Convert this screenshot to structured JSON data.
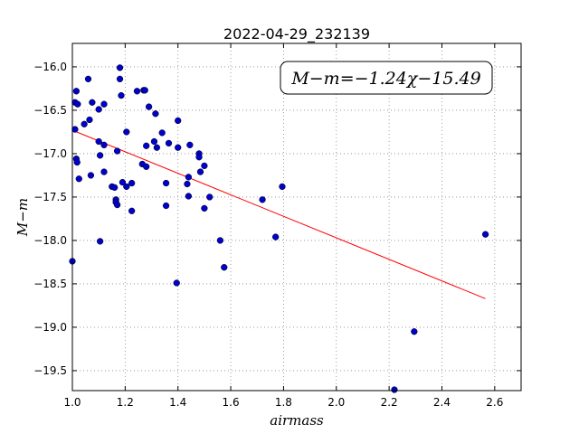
{
  "chart_data": {
    "type": "scatter",
    "title": "2022-04-29_232139",
    "xlabel": "airmass",
    "ylabel": "M−m",
    "xlim": [
      1.0,
      2.7
    ],
    "ylim": [
      -19.73,
      -15.73
    ],
    "y_inverted": true,
    "grid": true,
    "x_ticks": [
      1.0,
      1.2,
      1.4,
      1.6,
      1.8,
      2.0,
      2.2,
      2.4,
      2.6
    ],
    "x_tick_labels": [
      "1.0",
      "1.2",
      "1.4",
      "1.6",
      "1.8",
      "2.0",
      "2.2",
      "2.4",
      "2.6"
    ],
    "y_ticks": [
      -16.0,
      -16.5,
      -17.0,
      -17.5,
      -18.0,
      -18.5,
      -19.0,
      -19.5
    ],
    "y_tick_labels": [
      "−16.0",
      "−16.5",
      "−17.0",
      "−17.5",
      "−18.0",
      "−18.5",
      "−19.0",
      "−19.5"
    ],
    "annotation": "M−m=−1.24χ−15.49",
    "colors": {
      "points": "#0000cc",
      "fit": "#ff0000",
      "grid": "#888888"
    },
    "fit_line": {
      "slope": -1.24,
      "intercept": -15.49,
      "x_start": 1.0,
      "x_end": 2.565
    },
    "points": [
      [
        1.0,
        -18.24
      ],
      [
        1.01,
        -16.72
      ],
      [
        1.01,
        -16.41
      ],
      [
        1.015,
        -16.28
      ],
      [
        1.02,
        -16.43
      ],
      [
        1.015,
        -17.06
      ],
      [
        1.018,
        -17.1
      ],
      [
        1.025,
        -17.29
      ],
      [
        1.045,
        -16.66
      ],
      [
        1.06,
        -16.14
      ],
      [
        1.065,
        -16.61
      ],
      [
        1.07,
        -17.25
      ],
      [
        1.075,
        -16.41
      ],
      [
        1.1,
        -16.86
      ],
      [
        1.1,
        -16.49
      ],
      [
        1.105,
        -17.02
      ],
      [
        1.105,
        -18.01
      ],
      [
        1.12,
        -16.9
      ],
      [
        1.12,
        -16.43
      ],
      [
        1.12,
        -17.21
      ],
      [
        1.15,
        -17.38
      ],
      [
        1.16,
        -17.39
      ],
      [
        1.165,
        -17.53
      ],
      [
        1.165,
        -17.56
      ],
      [
        1.17,
        -16.97
      ],
      [
        1.17,
        -17.59
      ],
      [
        1.18,
        -16.01
      ],
      [
        1.18,
        -16.14
      ],
      [
        1.185,
        -16.33
      ],
      [
        1.19,
        -17.33
      ],
      [
        1.205,
        -16.75
      ],
      [
        1.205,
        -17.38
      ],
      [
        1.225,
        -17.34
      ],
      [
        1.225,
        -17.66
      ],
      [
        1.245,
        -16.28
      ],
      [
        1.265,
        -17.12
      ],
      [
        1.27,
        -16.27
      ],
      [
        1.275,
        -16.27
      ],
      [
        1.28,
        -16.91
      ],
      [
        1.28,
        -17.15
      ],
      [
        1.29,
        -16.46
      ],
      [
        1.31,
        -16.86
      ],
      [
        1.315,
        -16.54
      ],
      [
        1.32,
        -16.93
      ],
      [
        1.34,
        -16.76
      ],
      [
        1.355,
        -17.34
      ],
      [
        1.355,
        -17.6
      ],
      [
        1.365,
        -16.88
      ],
      [
        1.395,
        -18.49
      ],
      [
        1.4,
        -16.62
      ],
      [
        1.4,
        -16.93
      ],
      [
        1.435,
        -17.35
      ],
      [
        1.44,
        -17.27
      ],
      [
        1.44,
        -17.49
      ],
      [
        1.445,
        -16.9
      ],
      [
        1.48,
        -17.0
      ],
      [
        1.48,
        -17.04
      ],
      [
        1.485,
        -17.21
      ],
      [
        1.5,
        -17.14
      ],
      [
        1.5,
        -17.63
      ],
      [
        1.52,
        -17.5
      ],
      [
        1.56,
        -18.0
      ],
      [
        1.575,
        -18.31
      ],
      [
        1.72,
        -17.53
      ],
      [
        1.77,
        -17.96
      ],
      [
        1.795,
        -17.38
      ],
      [
        2.22,
        -19.72
      ],
      [
        2.295,
        -19.05
      ],
      [
        2.565,
        -17.93
      ]
    ]
  }
}
